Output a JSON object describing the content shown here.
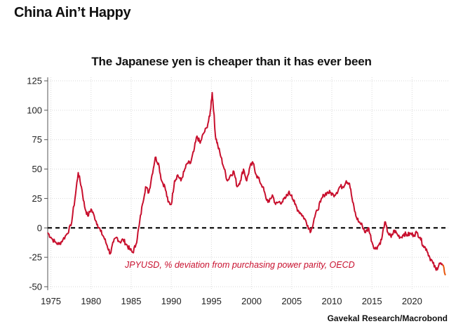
{
  "page": {
    "headline": "China Ain’t Happy",
    "source": "Gavekal Research/Macrobond"
  },
  "colors": {
    "line": "#c8102e",
    "line_tail": "#e8560c",
    "grid": "#d9d9d9",
    "zero_line": "#111111"
  },
  "chart_data": {
    "type": "line",
    "title": "The Japanese yen is cheaper than it has ever been",
    "xlabel": "",
    "ylabel": "",
    "xlim": [
      1974.6,
      2024.6
    ],
    "ylim": [
      -53,
      128
    ],
    "xticks": [
      1975,
      1980,
      1985,
      1990,
      1995,
      2000,
      2005,
      2010,
      2015,
      2020
    ],
    "yticks": [
      -50,
      -25,
      0,
      25,
      50,
      75,
      100,
      125
    ],
    "reference_line": {
      "y": 0,
      "style": "dashed"
    },
    "grid": true,
    "series": [
      {
        "name": "JPYUSD, % deviation from purchasing power parity, OECD",
        "x": [
          1974.6,
          1975.0,
          1975.5,
          1976.0,
          1976.5,
          1977.0,
          1977.5,
          1978.0,
          1978.4,
          1978.8,
          1979.2,
          1979.6,
          1980.0,
          1980.4,
          1980.8,
          1981.2,
          1981.6,
          1982.0,
          1982.4,
          1982.8,
          1983.2,
          1983.6,
          1984.0,
          1984.4,
          1984.8,
          1985.2,
          1985.6,
          1986.0,
          1986.4,
          1986.8,
          1987.2,
          1987.6,
          1988.0,
          1988.4,
          1988.8,
          1989.2,
          1989.6,
          1990.0,
          1990.4,
          1990.8,
          1991.2,
          1991.6,
          1992.0,
          1992.4,
          1992.8,
          1993.2,
          1993.6,
          1994.0,
          1994.4,
          1994.8,
          1995.1,
          1995.3,
          1995.5,
          1995.8,
          1996.2,
          1996.6,
          1997.0,
          1997.4,
          1997.8,
          1998.2,
          1998.6,
          1999.0,
          1999.4,
          1999.8,
          2000.2,
          2000.6,
          2001.0,
          2001.4,
          2001.8,
          2002.2,
          2002.6,
          2003.0,
          2003.4,
          2003.8,
          2004.2,
          2004.6,
          2005.0,
          2005.4,
          2005.8,
          2006.2,
          2006.6,
          2007.0,
          2007.4,
          2007.8,
          2008.2,
          2008.6,
          2009.0,
          2009.4,
          2009.8,
          2010.2,
          2010.6,
          2011.0,
          2011.4,
          2011.8,
          2012.2,
          2012.6,
          2013.0,
          2013.4,
          2013.8,
          2014.2,
          2014.6,
          2015.0,
          2015.4,
          2015.8,
          2016.2,
          2016.6,
          2017.0,
          2017.4,
          2017.8,
          2018.2,
          2018.6,
          2019.0,
          2019.4,
          2019.8,
          2020.2,
          2020.6,
          2021.0,
          2021.4,
          2021.8,
          2022.2,
          2022.6,
          2023.0,
          2023.4,
          2023.8,
          2024.2
        ],
        "values": [
          -4,
          -8,
          -12,
          -14,
          -10,
          -5,
          2,
          25,
          47,
          35,
          18,
          10,
          16,
          10,
          3,
          -3,
          -8,
          -15,
          -22,
          -12,
          -8,
          -12,
          -10,
          -14,
          -18,
          -21,
          -14,
          2,
          20,
          35,
          30,
          45,
          60,
          55,
          40,
          35,
          22,
          20,
          40,
          45,
          40,
          48,
          55,
          55,
          65,
          78,
          72,
          80,
          85,
          95,
          115,
          98,
          78,
          70,
          60,
          50,
          40,
          45,
          48,
          35,
          40,
          50,
          40,
          52,
          55,
          45,
          40,
          35,
          25,
          22,
          28,
          20,
          22,
          22,
          25,
          30,
          28,
          20,
          15,
          12,
          8,
          2,
          -3,
          8,
          15,
          22,
          28,
          30,
          30,
          28,
          30,
          35,
          35,
          40,
          38,
          22,
          10,
          5,
          2,
          -4,
          0,
          -12,
          -18,
          -15,
          -10,
          5,
          -4,
          -8,
          -2,
          -6,
          -8,
          -5,
          -6,
          -5,
          -6,
          -4,
          -8,
          -15,
          -18,
          -25,
          -30,
          -36,
          -30,
          -32,
          -40
        ]
      }
    ],
    "annotations": [
      "JPYUSD, % deviation from purchasing power parity, OECD"
    ]
  }
}
